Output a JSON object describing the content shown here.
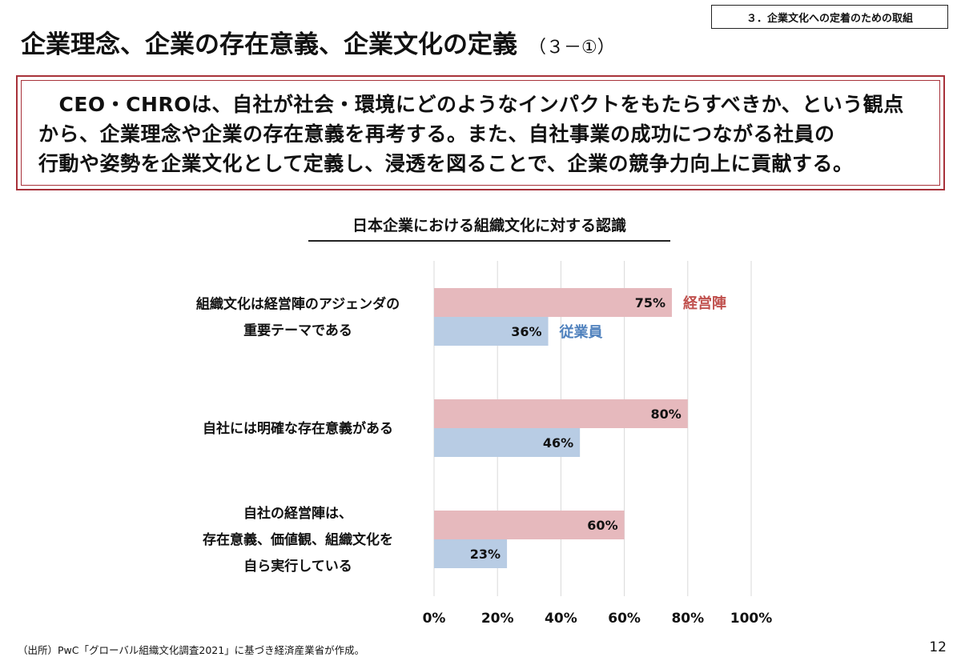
{
  "section_tag": "３．企業文化への定着のための取組",
  "title": {
    "main": "企業理念、企業の存在意義、企業文化の定義",
    "sub": "（３－①）"
  },
  "summary": {
    "lines": [
      "　CEO・CHROは、自社が社会・環境にどのようなインパクトをもたらすべきか、という観点",
      "から、企業理念や企業の存在意義を再考する。また、自社事業の成功につながる社員の",
      "行動や姿勢を企業文化として定義し、浸透を図ることで、企業の競争力向上に貢献する。"
    ]
  },
  "chart_data": {
    "type": "bar",
    "orientation": "horizontal",
    "title": "日本企業における組織文化に対する認識",
    "categories": [
      [
        "組織文化は経営陣のアジェンダの",
        "重要テーマである"
      ],
      [
        "自社には明確な存在意義がある"
      ],
      [
        "自社の経営陣は、",
        "存在意義、価値観、組織文化を",
        "自ら実行している"
      ]
    ],
    "series": [
      {
        "name": "経営陣",
        "values": [
          75,
          80,
          60
        ],
        "color": "#e6b9bd",
        "label_color": "#c0504d"
      },
      {
        "name": "従業員",
        "values": [
          36,
          46,
          23
        ],
        "color": "#b8cce4",
        "label_color": "#4f81bd"
      }
    ],
    "value_suffix": "%",
    "xlim": [
      0,
      100
    ],
    "xticks": [
      0,
      20,
      40,
      60,
      80,
      100
    ],
    "tick_labels": [
      "0%",
      "20%",
      "40%",
      "60%",
      "80%",
      "100%"
    ],
    "grid": true,
    "legend_placement": "inline-after-first-category"
  },
  "source_note": "（出所）PwC「グローバル組織文化調査2021」に基づき経済産業省が作成。",
  "page_number": "12"
}
